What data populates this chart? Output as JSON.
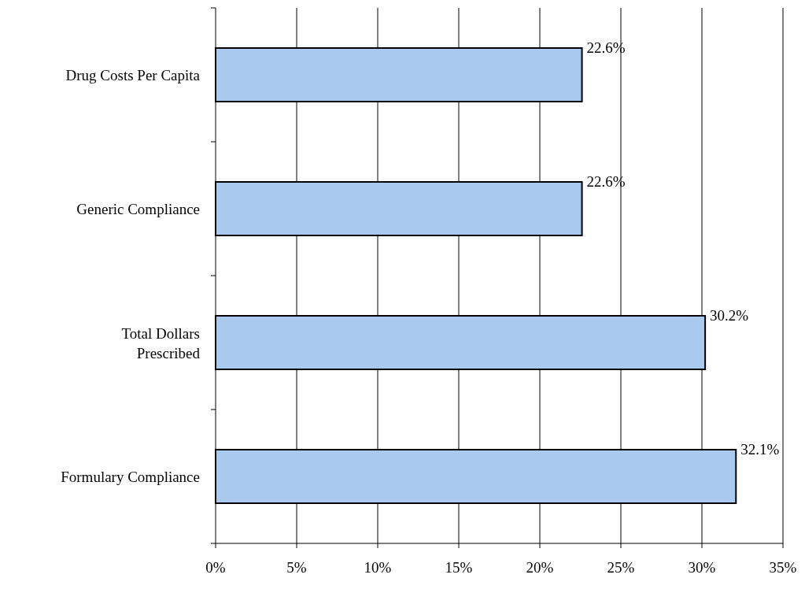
{
  "chart_data": {
    "type": "bar",
    "orientation": "horizontal",
    "categories": [
      "Drug Costs Per Capita",
      "Generic Compliance",
      "Total Dollars Prescribed",
      "Formulary Compliance"
    ],
    "values": [
      22.6,
      22.6,
      30.2,
      32.1
    ],
    "value_labels": [
      "22.6%",
      "22.6%",
      "30.2%",
      "32.1%"
    ],
    "color": "#a9c9ef",
    "xlim": [
      0,
      35
    ],
    "xticks": [
      {
        "value": 0,
        "label": "0%"
      },
      {
        "value": 5,
        "label": "5%"
      },
      {
        "value": 10,
        "label": "10%"
      },
      {
        "value": 15,
        "label": "15%"
      },
      {
        "value": 20,
        "label": "20%"
      },
      {
        "value": 25,
        "label": "25%"
      },
      {
        "value": 30,
        "label": "30%"
      },
      {
        "value": 35,
        "label": "35%"
      }
    ],
    "grid": "x"
  }
}
